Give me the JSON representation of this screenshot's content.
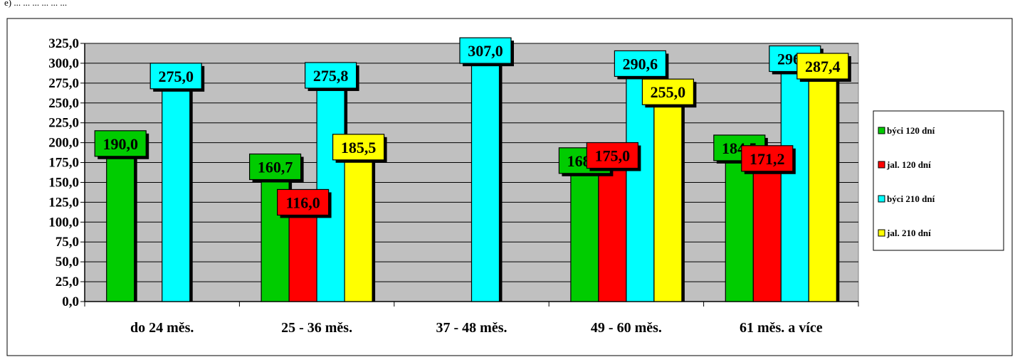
{
  "header_fragment": "e) ... ... ... ... ... ...",
  "chart_data": {
    "type": "bar",
    "categories": [
      "do 24 měs.",
      "25 - 36 měs.",
      "37 - 48 měs.",
      "49 - 60 měs.",
      "61 měs. a více"
    ],
    "series": [
      {
        "name": "býci 120 dní",
        "color": "#00cc00",
        "values": [
          190.0,
          160.7,
          null,
          168.5,
          184.5
        ],
        "labels": [
          "190,0",
          "160,7",
          "",
          "168,5",
          "184,5"
        ]
      },
      {
        "name": "jal. 120 dní",
        "color": "#ff0000",
        "values": [
          null,
          116.0,
          null,
          175.0,
          171.2
        ],
        "labels": [
          "",
          "116,0",
          "",
          "175,0",
          "171,2"
        ]
      },
      {
        "name": "býci 210 dní",
        "color": "#00ffff",
        "values": [
          275.0,
          275.8,
          307.0,
          290.6,
          296.8
        ],
        "labels": [
          "275,0",
          "275,8",
          "307,0",
          "290,6",
          "296,8"
        ]
      },
      {
        "name": "jal. 210 dní",
        "color": "#ffff00",
        "values": [
          null,
          185.5,
          null,
          255.0,
          287.4
        ],
        "labels": [
          "",
          "185,5",
          "",
          "255,0",
          "287,4"
        ]
      }
    ],
    "ylim": [
      0,
      325
    ],
    "yticks": [
      "0,0",
      "25,0",
      "50,0",
      "75,0",
      "100,0",
      "125,0",
      "150,0",
      "175,0",
      "200,0",
      "225,0",
      "250,0",
      "275,0",
      "300,0",
      "325,0"
    ],
    "grid": true,
    "legend_position": "right",
    "plot_background": "#c0c0c0",
    "title": "",
    "xlabel": "",
    "ylabel": ""
  }
}
